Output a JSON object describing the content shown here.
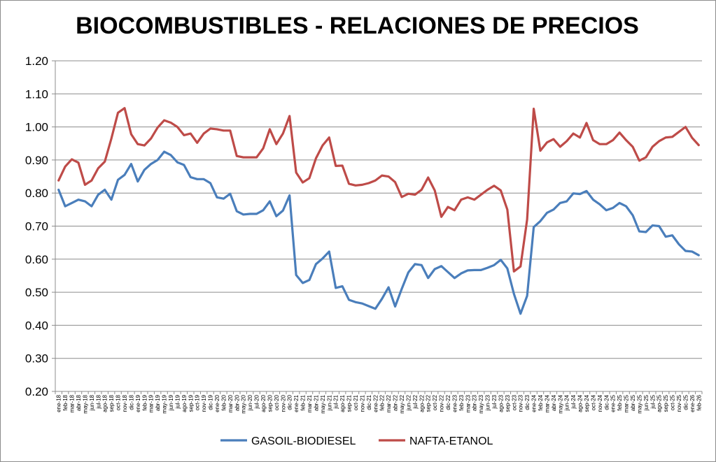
{
  "chart_data": {
    "type": "line",
    "title": "BIOCOMBUSTIBLES - RELACIONES DE PRECIOS",
    "xlabel": "",
    "ylabel": "",
    "ylim": [
      0.2,
      1.2
    ],
    "yticks": [
      "0.20",
      "0.30",
      "0.40",
      "0.50",
      "0.60",
      "0.70",
      "0.80",
      "0.90",
      "1.00",
      "1.10",
      "1.20"
    ],
    "grid": "horizontal",
    "legend": "bottom",
    "x": [
      "ene-18",
      "feb-18",
      "mar-18",
      "abr-18",
      "may-18",
      "jun-18",
      "jul-18",
      "ago-18",
      "sep-18",
      "oct-18",
      "nov-18",
      "dic-18",
      "ene-19",
      "feb-19",
      "mar-19",
      "abr-19",
      "may-19",
      "jun-19",
      "jul-19",
      "ago-19",
      "sep-19",
      "oct-19",
      "nov-19",
      "dic-19",
      "ene-20",
      "feb-20",
      "mar-20",
      "abr-20",
      "may-20",
      "jun-20",
      "jul-20",
      "ago-20",
      "sep-20",
      "oct-20",
      "nov-20",
      "dic-20",
      "ene-21",
      "feb-21",
      "mar-21",
      "abr-21",
      "may-21",
      "jun-21",
      "jul-21",
      "ago-21",
      "sep-21",
      "oct-21",
      "nov-21",
      "dic-21",
      "ene-22",
      "feb-22",
      "mar-22",
      "abr-22",
      "may-22",
      "jun-22",
      "jul-22",
      "ago-22",
      "sep-22",
      "oct-22",
      "nov-22",
      "dic-22",
      "ene-23",
      "feb-23",
      "mar-23",
      "abr-23",
      "may-23",
      "jun-23",
      "jul-23",
      "ago-23",
      "sep-23",
      "oct-23",
      "nov-23",
      "dic-23",
      "ene-24",
      "feb-24",
      "mar-24",
      "abr-24",
      "may-24",
      "jun-24",
      "jul-24",
      "ago-24",
      "sep-24",
      "oct-24",
      "nov-24",
      "dic-24",
      "ene-25",
      "feb-25",
      "mar-25",
      "abr-25",
      "may-25",
      "jun-25",
      "jul-25",
      "ago-25",
      "sep-25",
      "oct-25",
      "nov-25",
      "dic-25",
      "ene-26",
      "feb-26"
    ],
    "series": [
      {
        "name": "GASOIL-BIODIESEL",
        "color": "#4a7ebb",
        "values": [
          0.81,
          0.76,
          0.77,
          0.78,
          0.775,
          0.76,
          0.795,
          0.81,
          0.78,
          0.84,
          0.855,
          0.888,
          0.835,
          0.87,
          0.888,
          0.9,
          0.925,
          0.915,
          0.893,
          0.885,
          0.848,
          0.842,
          0.842,
          0.83,
          0.787,
          0.783,
          0.798,
          0.745,
          0.735,
          0.737,
          0.737,
          0.748,
          0.775,
          0.73,
          0.747,
          0.793,
          0.552,
          0.528,
          0.537,
          0.585,
          0.602,
          0.623,
          0.513,
          0.518,
          0.477,
          0.47,
          0.466,
          0.458,
          0.45,
          0.48,
          0.515,
          0.457,
          0.51,
          0.56,
          0.585,
          0.582,
          0.543,
          0.57,
          0.579,
          0.561,
          0.543,
          0.557,
          0.566,
          0.567,
          0.567,
          0.574,
          0.582,
          0.598,
          0.572,
          0.495,
          0.435,
          0.489,
          0.697,
          0.715,
          0.74,
          0.75,
          0.77,
          0.775,
          0.799,
          0.797,
          0.806,
          0.78,
          0.766,
          0.748,
          0.755,
          0.77,
          0.76,
          0.733,
          0.684,
          0.682,
          0.702,
          0.7,
          0.668,
          0.672,
          0.645,
          0.625,
          0.623,
          0.612
        ]
      },
      {
        "name": "NAFTA-ETANOL",
        "color": "#be4b48",
        "values": [
          0.838,
          0.88,
          0.902,
          0.892,
          0.825,
          0.838,
          0.875,
          0.895,
          0.965,
          1.043,
          1.057,
          0.978,
          0.948,
          0.944,
          0.965,
          0.998,
          1.02,
          1.013,
          1.0,
          0.975,
          0.98,
          0.952,
          0.98,
          0.995,
          0.993,
          0.989,
          0.989,
          0.912,
          0.908,
          0.908,
          0.908,
          0.935,
          0.993,
          0.948,
          0.98,
          1.033,
          0.862,
          0.832,
          0.845,
          0.905,
          0.944,
          0.968,
          0.882,
          0.883,
          0.828,
          0.823,
          0.825,
          0.83,
          0.838,
          0.853,
          0.85,
          0.833,
          0.788,
          0.798,
          0.795,
          0.81,
          0.847,
          0.808,
          0.728,
          0.758,
          0.748,
          0.78,
          0.787,
          0.78,
          0.795,
          0.81,
          0.822,
          0.808,
          0.75,
          0.563,
          0.578,
          0.72,
          1.055,
          0.928,
          0.953,
          0.963,
          0.94,
          0.957,
          0.98,
          0.968,
          1.012,
          0.96,
          0.948,
          0.948,
          0.96,
          0.983,
          0.96,
          0.94,
          0.898,
          0.908,
          0.94,
          0.957,
          0.968,
          0.97,
          0.985,
          1.0,
          0.967,
          0.945
        ]
      }
    ]
  }
}
